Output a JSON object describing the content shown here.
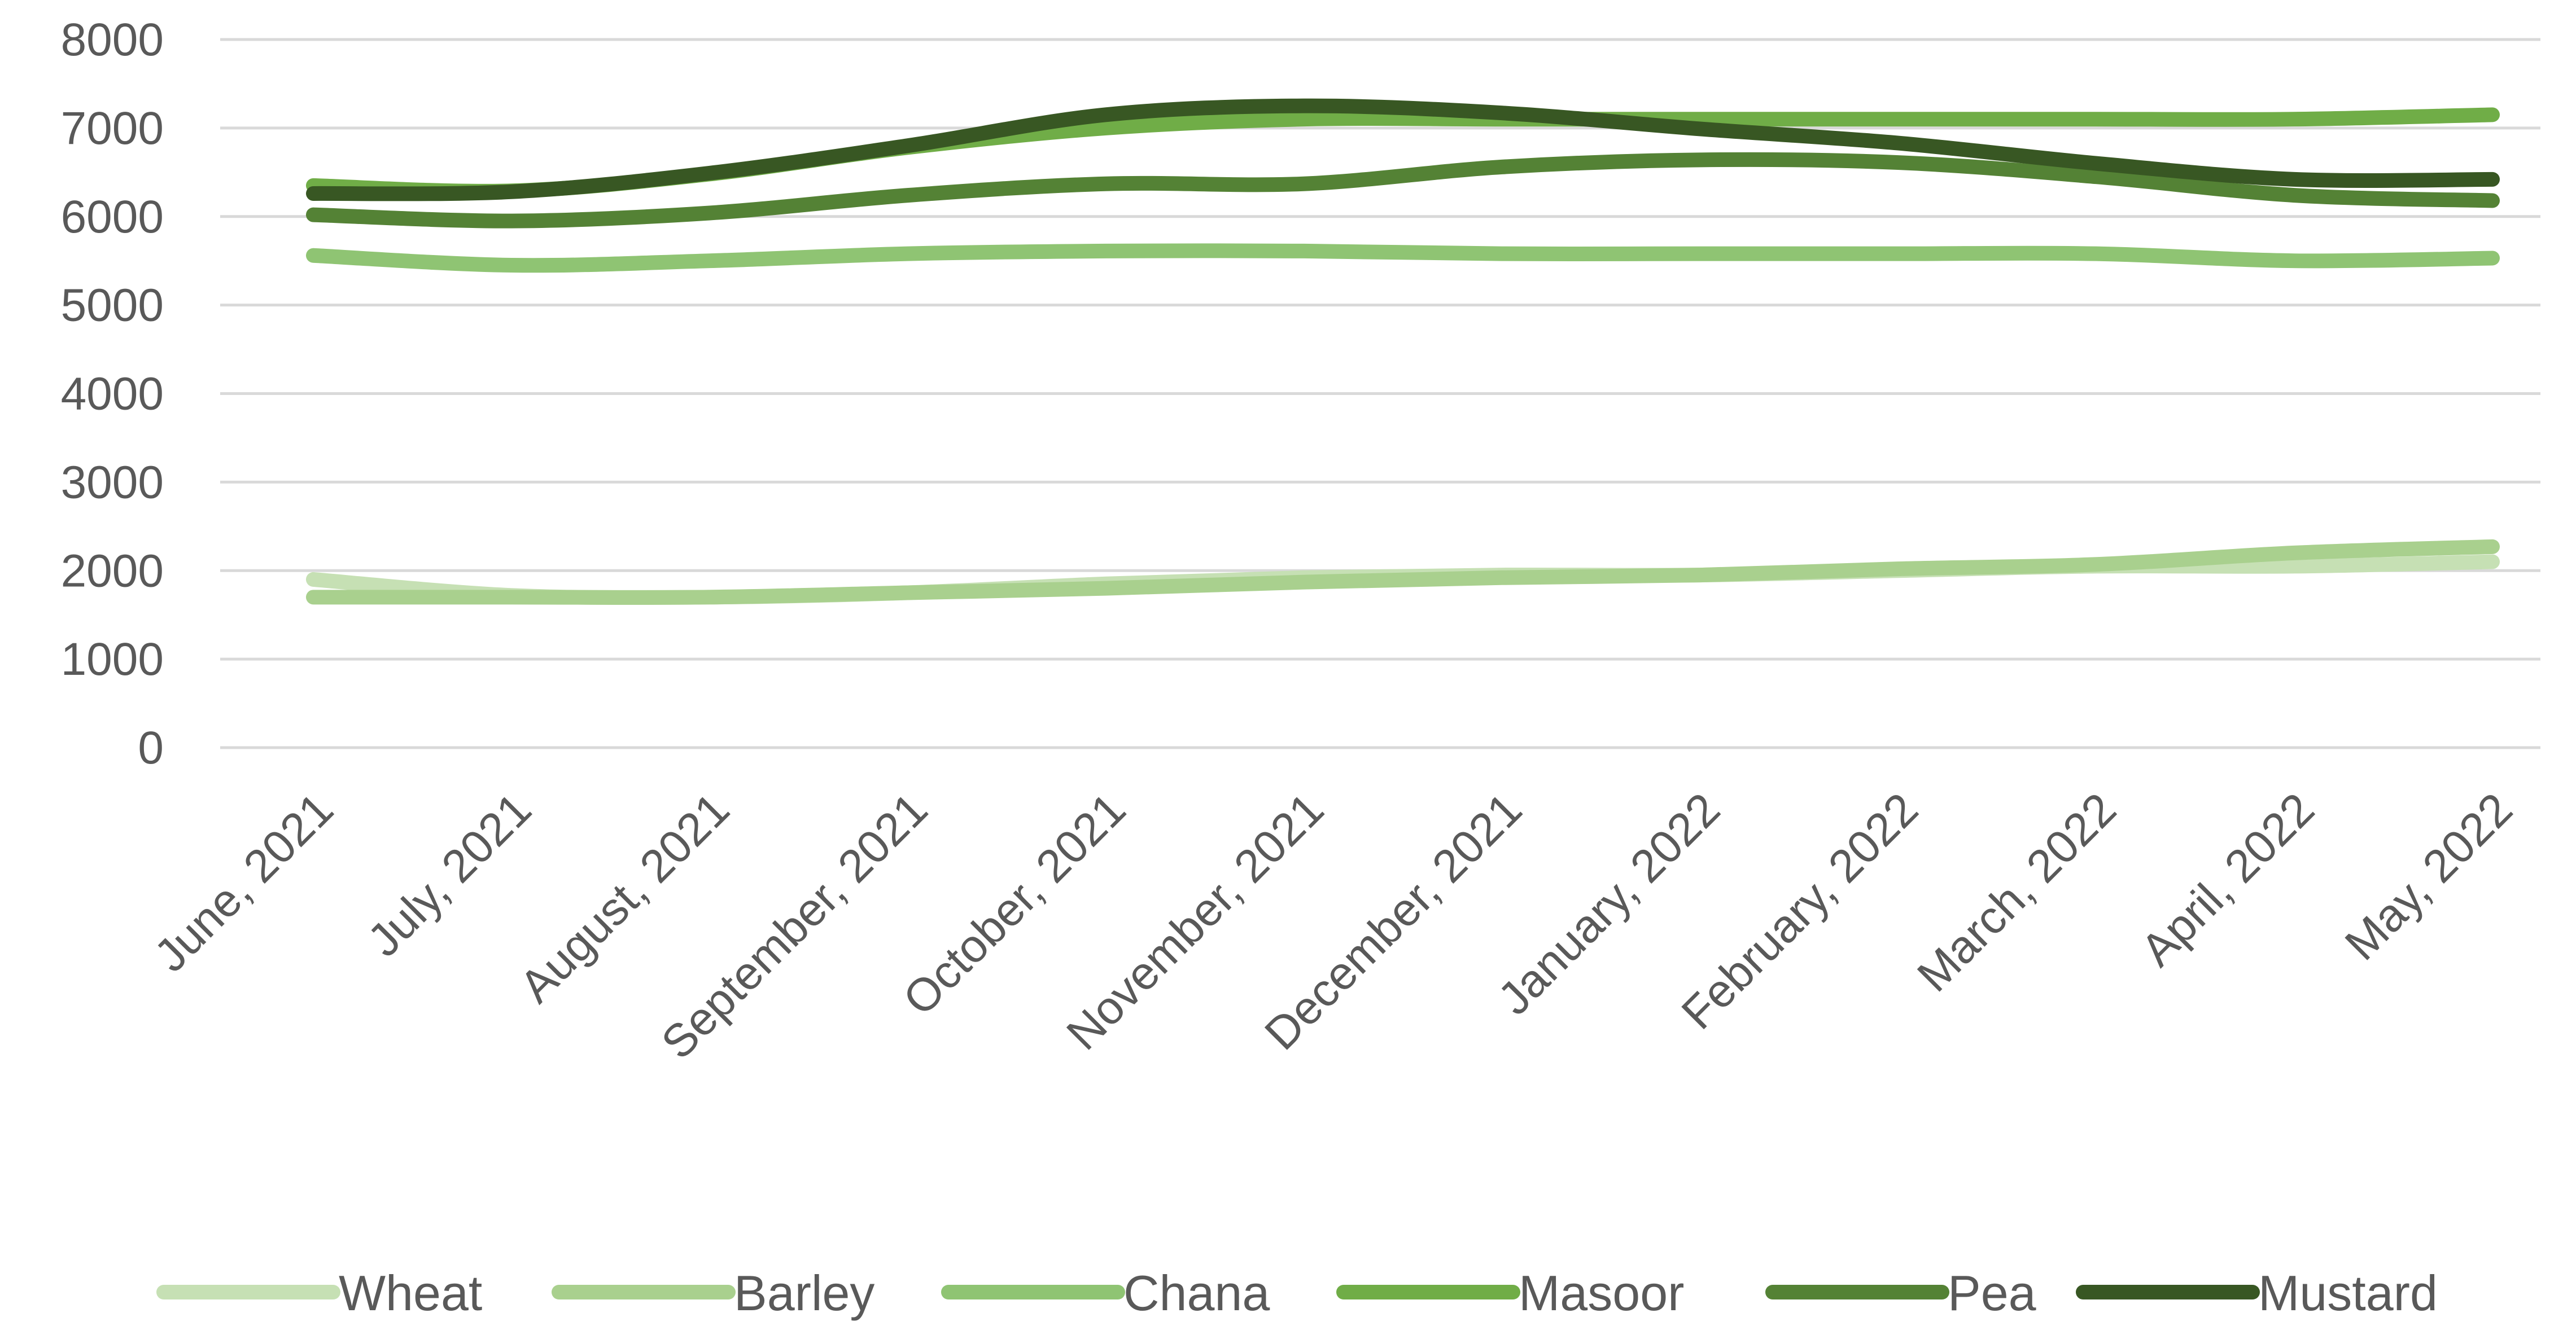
{
  "chart_data": {
    "type": "line",
    "title": "",
    "xlabel": "",
    "ylabel": "",
    "categories": [
      "June, 2021",
      "July, 2021",
      "August, 2021",
      "September, 2021",
      "October, 2021",
      "November, 2021",
      "December, 2021",
      "January, 2022",
      "February, 2022",
      "March, 2022",
      "April, 2022",
      "May, 2022"
    ],
    "ylim": [
      0,
      8000
    ],
    "yticks": [
      "0",
      "1000",
      "2000",
      "3000",
      "4000",
      "5000",
      "6000",
      "7000",
      "8000"
    ],
    "grid": true,
    "legend": "bottom",
    "series": [
      {
        "name": "Wheat",
        "color": "#c6e0b4",
        "values": [
          1900,
          1720,
          1700,
          1750,
          1850,
          1920,
          1950,
          1950,
          2000,
          2050,
          2050,
          2100
        ]
      },
      {
        "name": "Barley",
        "color": "#a9d08e",
        "values": [
          1700,
          1700,
          1700,
          1750,
          1800,
          1870,
          1920,
          1950,
          2020,
          2070,
          2200,
          2270
        ]
      },
      {
        "name": "Chana",
        "color": "#8fc473",
        "values": [
          5560,
          5450,
          5500,
          5580,
          5610,
          5610,
          5580,
          5580,
          5580,
          5580,
          5500,
          5530
        ]
      },
      {
        "name": "Masoor",
        "color": "#70ad47",
        "values": [
          6350,
          6290,
          6480,
          6780,
          7000,
          7100,
          7100,
          7100,
          7100,
          7100,
          7100,
          7150
        ]
      },
      {
        "name": "Pea",
        "color": "#548235",
        "values": [
          6020,
          5950,
          6040,
          6240,
          6370,
          6370,
          6560,
          6640,
          6610,
          6450,
          6240,
          6180
        ]
      },
      {
        "name": "Mustard",
        "color": "#385723",
        "values": [
          6260,
          6280,
          6490,
          6800,
          7150,
          7250,
          7170,
          6990,
          6830,
          6600,
          6420,
          6420
        ]
      }
    ]
  }
}
